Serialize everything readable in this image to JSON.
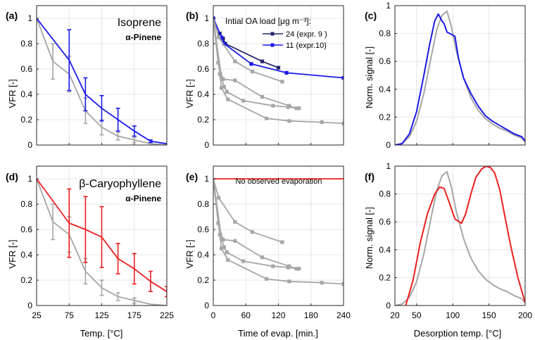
{
  "colors": {
    "alpha_pinene": "#a6a6a6",
    "isoprene": "#1a1aeb",
    "isoprene_expr9": "#24246b",
    "caryophyllene": "#ef1f1f"
  },
  "chart_data": [
    {
      "panel": "(a)",
      "type": "line",
      "xlabel": "",
      "ylabel": "VFR [-]",
      "xlim": [
        25,
        225
      ],
      "ylim": [
        0,
        1.1
      ],
      "xticks": [],
      "yticks": [
        "0",
        "0.2",
        "0.4",
        "0.6",
        "0.8",
        "1"
      ],
      "grid": true,
      "legend": [
        "Isoprene",
        "α-Pinene"
      ],
      "legend_position": "top-right",
      "series": [
        {
          "name": "α-Pinene",
          "color": "#a6a6a6",
          "x": [
            25,
            50,
            75,
            100,
            125,
            150,
            175,
            200,
            225
          ],
          "y": [
            1,
            0.66,
            0.56,
            0.27,
            0.14,
            0.07,
            0.04,
            0.01,
            0
          ],
          "err": [
            0,
            0.14,
            0.14,
            0.1,
            0.06,
            0.03,
            0.02,
            0,
            0
          ]
        },
        {
          "name": "Isoprene",
          "color": "#1a1aeb",
          "x": [
            25,
            75,
            100,
            125,
            150,
            175,
            200,
            225
          ],
          "y": [
            1,
            0.67,
            0.4,
            0.29,
            0.2,
            0.11,
            0.03,
            0.01
          ],
          "err": [
            0,
            0.24,
            0.13,
            0.1,
            0.09,
            0.04,
            0.01,
            0
          ]
        }
      ]
    },
    {
      "panel": "(b)",
      "type": "line",
      "xlabel": "",
      "ylabel": "VFR [-]",
      "xlim": [
        0,
        240
      ],
      "ylim": [
        0,
        1.1
      ],
      "xticks": [],
      "yticks": [
        "0",
        "0.2",
        "0.4",
        "0.6",
        "0.8",
        "1"
      ],
      "grid": true,
      "legend_title": "Intial OA load [μg m⁻³]:",
      "legend": [
        "24 (expr. 9 )",
        "11 (expr.10)"
      ],
      "legend_position": "top-right",
      "series": [
        {
          "name": "24 (expr. 9 )",
          "color": "#24246b",
          "x": [
            0,
            12,
            18,
            22,
            90,
            120
          ],
          "y": [
            1,
            0.88,
            0.84,
            0.8,
            0.66,
            0.61
          ]
        },
        {
          "name": "11 (expr.10)",
          "color": "#1a1aeb",
          "x": [
            0,
            15,
            20,
            70,
            135,
            240
          ],
          "y": [
            1,
            0.85,
            0.8,
            0.64,
            0.57,
            0.53
          ]
        },
        {
          "color": "#a6a6a6",
          "x": [
            0,
            10,
            40,
            72,
            127
          ],
          "y": [
            1,
            0.85,
            0.66,
            0.58,
            0.5
          ]
        },
        {
          "color": "#a6a6a6",
          "x": [
            0,
            9,
            13,
            18,
            40,
            90,
            140,
            153
          ],
          "y": [
            1,
            0.65,
            0.56,
            0.52,
            0.51,
            0.38,
            0.31,
            0.29
          ]
        },
        {
          "color": "#a6a6a6",
          "x": [
            0,
            15,
            20,
            25,
            55,
            110,
            138,
            158
          ],
          "y": [
            1,
            0.53,
            0.46,
            0.42,
            0.35,
            0.31,
            0.3,
            0.29
          ]
        },
        {
          "color": "#a6a6a6",
          "x": [
            0,
            12,
            15,
            27,
            98,
            140,
            200,
            240
          ],
          "y": [
            1,
            0.56,
            0.45,
            0.36,
            0.21,
            0.19,
            0.18,
            0.17
          ]
        }
      ]
    },
    {
      "panel": "(c)",
      "type": "line",
      "xlabel": "",
      "ylabel": "Norm. signal [-]",
      "xlim": [
        20,
        200
      ],
      "ylim": [
        0,
        1
      ],
      "xticks": [],
      "yticks": [
        "0",
        "0.2",
        "0.4",
        "0.6",
        "0.8",
        "1"
      ],
      "grid": true,
      "series": [
        {
          "color": "#a6a6a6",
          "x": [
            20,
            30,
            40,
            50,
            60,
            70,
            78,
            85,
            92,
            98,
            105,
            115,
            125,
            135,
            145,
            155,
            165,
            175,
            185,
            195,
            200
          ],
          "y": [
            0,
            0.01,
            0.06,
            0.17,
            0.37,
            0.63,
            0.83,
            0.93,
            0.96,
            0.85,
            0.67,
            0.48,
            0.34,
            0.25,
            0.19,
            0.15,
            0.12,
            0.1,
            0.07,
            0.05,
            0.02
          ]
        },
        {
          "color": "#1a1aeb",
          "x": [
            20,
            30,
            40,
            50,
            60,
            68,
            75,
            80,
            85,
            88,
            92,
            96,
            103,
            108,
            115,
            125,
            135,
            145,
            155,
            165,
            175,
            185,
            195,
            200
          ],
          "y": [
            0,
            0.01,
            0.08,
            0.24,
            0.5,
            0.72,
            0.89,
            0.94,
            0.89,
            0.87,
            0.81,
            0.8,
            0.78,
            0.62,
            0.48,
            0.37,
            0.28,
            0.21,
            0.17,
            0.14,
            0.11,
            0.08,
            0.06,
            0.03
          ]
        }
      ]
    },
    {
      "panel": "(d)",
      "type": "line",
      "xlabel": "Temp. [°C]",
      "ylabel": "VFR [-]",
      "xlim": [
        25,
        225
      ],
      "ylim": [
        0,
        1.1
      ],
      "xticks": [
        "25",
        "75",
        "125",
        "175",
        "225"
      ],
      "yticks": [
        "0",
        "0.2",
        "0.4",
        "0.6",
        "0.8",
        "1"
      ],
      "grid": true,
      "legend": [
        "β-Caryophyllene",
        "α-Pinene"
      ],
      "legend_position": "top-right",
      "series": [
        {
          "name": "α-Pinene",
          "color": "#a6a6a6",
          "x": [
            25,
            50,
            75,
            100,
            125,
            150,
            175,
            200,
            225
          ],
          "y": [
            1,
            0.66,
            0.56,
            0.27,
            0.14,
            0.07,
            0.04,
            0.01,
            0
          ],
          "err": [
            0,
            0.14,
            0.14,
            0.1,
            0.06,
            0.03,
            0.02,
            0,
            0
          ]
        },
        {
          "name": "β-Caryophyllene",
          "color": "#ef1f1f",
          "x": [
            25,
            75,
            100,
            125,
            150,
            175,
            200,
            225
          ],
          "y": [
            1,
            0.65,
            0.6,
            0.54,
            0.37,
            0.29,
            0.19,
            0.11
          ],
          "err": [
            0,
            0.27,
            0.26,
            0.24,
            0.12,
            0.12,
            0.08,
            0.04
          ]
        }
      ]
    },
    {
      "panel": "(e)",
      "type": "line",
      "xlabel": "Time of evap. [min.]",
      "ylabel": "VFR [-]",
      "xlim": [
        0,
        240
      ],
      "ylim": [
        0,
        1.1
      ],
      "xticks": [
        "0",
        "60",
        "120",
        "180",
        "240"
      ],
      "yticks": [
        "0",
        "0.2",
        "0.4",
        "0.6",
        "0.8",
        "1"
      ],
      "grid": true,
      "annotation": "No observed evaporation",
      "series": [
        {
          "color": "#ef1f1f",
          "x": [
            0,
            240
          ],
          "y": [
            1,
            1
          ],
          "markers": false
        },
        {
          "color": "#a6a6a6",
          "x": [
            0,
            10,
            40,
            72,
            127
          ],
          "y": [
            1,
            0.85,
            0.66,
            0.58,
            0.5
          ]
        },
        {
          "color": "#a6a6a6",
          "x": [
            0,
            9,
            13,
            18,
            40,
            90,
            140,
            153
          ],
          "y": [
            1,
            0.65,
            0.56,
            0.52,
            0.51,
            0.38,
            0.31,
            0.29
          ]
        },
        {
          "color": "#a6a6a6",
          "x": [
            0,
            15,
            20,
            25,
            55,
            110,
            138,
            158
          ],
          "y": [
            1,
            0.53,
            0.46,
            0.42,
            0.35,
            0.31,
            0.3,
            0.29
          ]
        },
        {
          "color": "#a6a6a6",
          "x": [
            0,
            12,
            15,
            27,
            98,
            140,
            200,
            240
          ],
          "y": [
            1,
            0.56,
            0.45,
            0.36,
            0.21,
            0.19,
            0.18,
            0.17
          ]
        }
      ]
    },
    {
      "panel": "(f)",
      "type": "line",
      "xlabel": "Desorption temp. [°C]",
      "ylabel": "Norm. signal [-]",
      "xlim": [
        20,
        200
      ],
      "ylim": [
        0,
        1
      ],
      "xticks": [
        "20",
        "50",
        "100",
        "150",
        "200"
      ],
      "yticks": [
        "0",
        "0.2",
        "0.4",
        "0.6",
        "0.8",
        "1"
      ],
      "grid": true,
      "series": [
        {
          "color": "#a6a6a6",
          "x": [
            20,
            30,
            40,
            50,
            60,
            70,
            78,
            85,
            92,
            98,
            105,
            115,
            125,
            135,
            145,
            155,
            165,
            175,
            185,
            195,
            200
          ],
          "y": [
            0,
            0.01,
            0.06,
            0.17,
            0.37,
            0.63,
            0.83,
            0.93,
            0.96,
            0.85,
            0.67,
            0.48,
            0.34,
            0.25,
            0.19,
            0.15,
            0.12,
            0.1,
            0.07,
            0.05,
            0.02
          ]
        },
        {
          "color": "#ef1f1f",
          "x": [
            35,
            45,
            55,
            65,
            75,
            82,
            88,
            95,
            103,
            112,
            118,
            125,
            132,
            140,
            146,
            152,
            158,
            165,
            172,
            180,
            190,
            200
          ],
          "y": [
            0,
            0.18,
            0.45,
            0.66,
            0.8,
            0.85,
            0.84,
            0.74,
            0.62,
            0.59,
            0.66,
            0.8,
            0.92,
            0.98,
            1.0,
            0.99,
            0.95,
            0.83,
            0.64,
            0.43,
            0.2,
            0.02
          ]
        }
      ]
    }
  ]
}
